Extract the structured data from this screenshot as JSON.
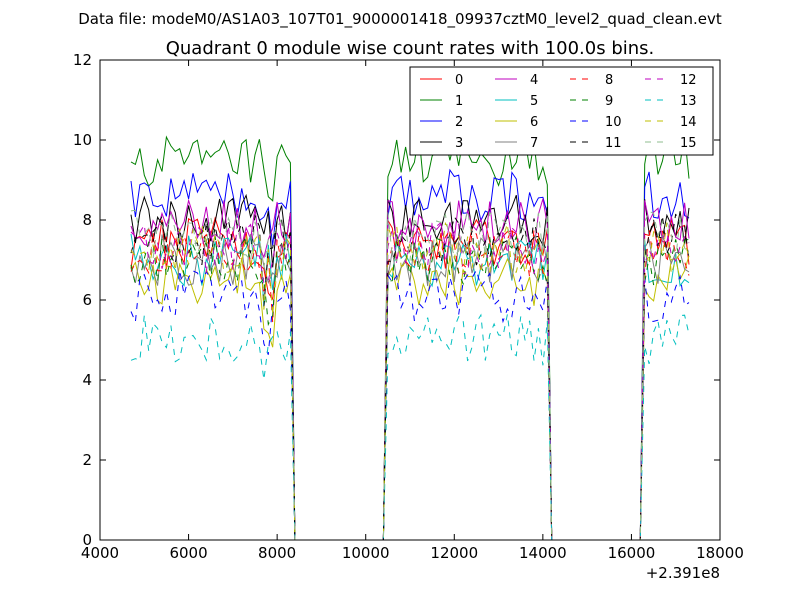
{
  "suptitle": "Data file: modeM0/AS1A03_107T01_9000001418_09937cztM0_level2_quad_clean.evt",
  "chart_data": {
    "type": "line",
    "title": "Quadrant 0 module wise count rates with 100.0s bins.",
    "xlabel": "",
    "ylabel": "",
    "x_offset_label": "+2.391e8",
    "xlim": [
      4000,
      18000
    ],
    "ylim": [
      0,
      12
    ],
    "xticks": [
      4000,
      6000,
      8000,
      10000,
      12000,
      14000,
      16000,
      18000
    ],
    "yticks": [
      0,
      2,
      4,
      6,
      8,
      10,
      12
    ],
    "grid": false,
    "legend_position": "top-right",
    "legend_columns": 4,
    "segments": [
      {
        "start": 4700,
        "end": 8300
      },
      {
        "start": 10500,
        "end": 14100
      },
      {
        "start": 16300,
        "end": 17300
      }
    ],
    "series": [
      {
        "name": "0",
        "color": "#ff0000",
        "dash": "solid",
        "level": 7.4
      },
      {
        "name": "1",
        "color": "#008000",
        "dash": "solid",
        "level": 9.5
      },
      {
        "name": "2",
        "color": "#0000ff",
        "dash": "solid",
        "level": 8.6
      },
      {
        "name": "3",
        "color": "#000000",
        "dash": "solid",
        "level": 8.0
      },
      {
        "name": "4",
        "color": "#bf00bf",
        "dash": "solid",
        "level": 7.9
      },
      {
        "name": "5",
        "color": "#00bfbf",
        "dash": "solid",
        "level": 7.0
      },
      {
        "name": "6",
        "color": "#bfbf00",
        "dash": "solid",
        "level": 6.5
      },
      {
        "name": "7",
        "color": "#808080",
        "dash": "solid",
        "level": 7.0
      },
      {
        "name": "8",
        "color": "#ff0000",
        "dash": "dashed",
        "level": 7.2
      },
      {
        "name": "9",
        "color": "#008000",
        "dash": "dashed",
        "level": 7.0
      },
      {
        "name": "10",
        "color": "#0000ff",
        "dash": "dashed",
        "level": 6.1
      },
      {
        "name": "11",
        "color": "#000000",
        "dash": "dashed",
        "level": 7.5
      },
      {
        "name": "12",
        "color": "#bf00bf",
        "dash": "dashed",
        "level": 7.3
      },
      {
        "name": "13",
        "color": "#00bfbf",
        "dash": "dashed",
        "level": 5.0
      },
      {
        "name": "14",
        "color": "#bfbf00",
        "dash": "dashed",
        "level": 7.3
      },
      {
        "name": "15",
        "color": "#8fbc8f",
        "dash": "dashed",
        "level": 7.6
      }
    ]
  }
}
